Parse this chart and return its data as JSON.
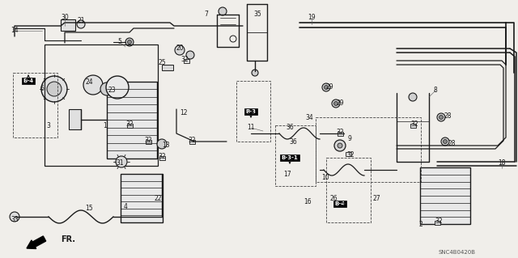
{
  "bg_color": "#f0eeea",
  "line_color": "#1a1a1a",
  "fig_width": 6.4,
  "fig_height": 3.19,
  "dpi": 100,
  "watermark": "SNC4B0420B",
  "img_b64": ""
}
